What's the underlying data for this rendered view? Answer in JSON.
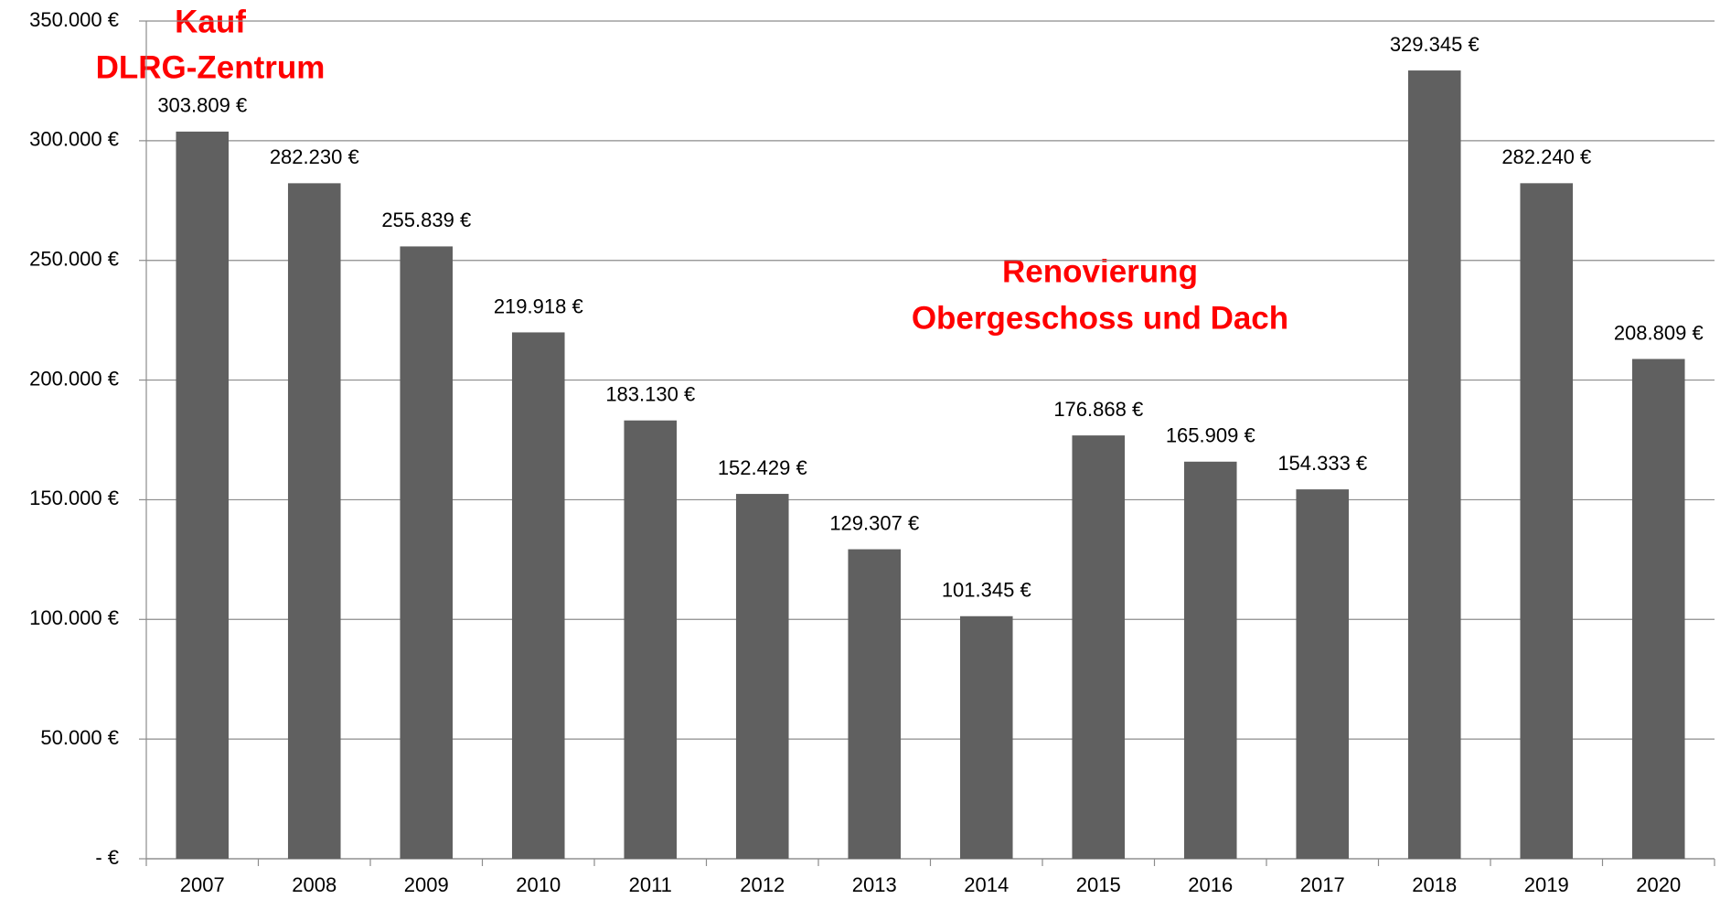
{
  "chart_data": {
    "type": "bar",
    "categories": [
      "2007",
      "2008",
      "2009",
      "2010",
      "2011",
      "2012",
      "2013",
      "2014",
      "2015",
      "2016",
      "2017",
      "2018",
      "2019",
      "2020"
    ],
    "values": [
      303809,
      282230,
      255839,
      219918,
      183130,
      152429,
      129307,
      101345,
      176868,
      165909,
      154333,
      329345,
      282240,
      208809
    ],
    "value_labels": [
      "303.809 €",
      "282.230 €",
      "255.839 €",
      "219.918 €",
      "183.130 €",
      "152.429 €",
      "129.307 €",
      "101.345 €",
      "176.868 €",
      "165.909 €",
      "154.333 €",
      "329.345 €",
      "282.240 €",
      "208.809 €"
    ],
    "color": "#606060",
    "ylim": [
      0,
      350000
    ],
    "yticks": [
      {
        "value": 0,
        "label": "-   €"
      },
      {
        "value": 50000,
        "label": "50.000 €"
      },
      {
        "value": 100000,
        "label": "100.000 €"
      },
      {
        "value": 150000,
        "label": "150.000 €"
      },
      {
        "value": 200000,
        "label": "200.000 €"
      },
      {
        "value": 250000,
        "label": "250.000 €"
      },
      {
        "value": 300000,
        "label": "300.000 €"
      },
      {
        "value": 350000,
        "label": "350.000 €"
      }
    ],
    "grid": true,
    "annotations": [
      {
        "lines": [
          "Kauf",
          "DLRG-Zentrum"
        ],
        "color": "#ff0000"
      },
      {
        "lines": [
          "Renovierung",
          "Obergeschoss und Dach"
        ],
        "color": "#ff0000"
      }
    ]
  }
}
